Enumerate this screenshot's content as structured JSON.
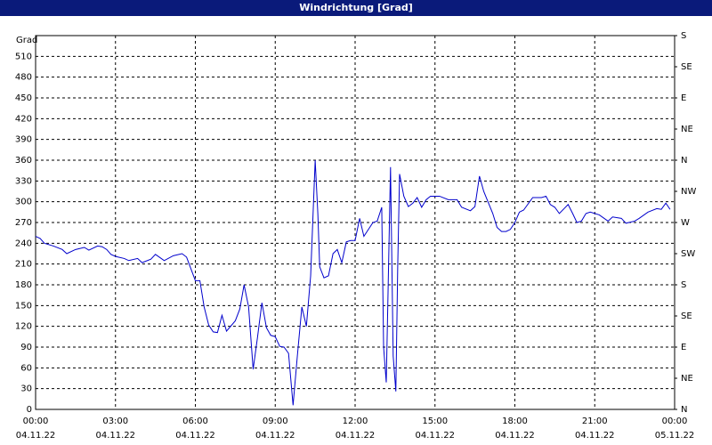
{
  "chart_data": {
    "type": "line",
    "title": "Windrichtung [Grad]",
    "y_label": "Grad",
    "xlim": [
      0,
      24
    ],
    "xticks": [
      {
        "value": 0,
        "label": "00:00"
      },
      {
        "value": 3,
        "label": "03:00"
      },
      {
        "value": 6,
        "label": "06:00"
      },
      {
        "value": 9,
        "label": "09:00"
      },
      {
        "value": 12,
        "label": "12:00"
      },
      {
        "value": 15,
        "label": "15:00"
      },
      {
        "value": 18,
        "label": "18:00"
      },
      {
        "value": 21,
        "label": "21:00"
      },
      {
        "value": 24,
        "label": "00:00"
      }
    ],
    "xtick_dates": [
      "04.11.22",
      "04.11.22",
      "04.11.22",
      "04.11.22",
      "04.11.22",
      "04.11.22",
      "04.11.22",
      "04.11.22",
      "05.11.22"
    ],
    "ylim": [
      0,
      540
    ],
    "yticks": [
      0,
      30,
      60,
      90,
      120,
      150,
      180,
      210,
      240,
      270,
      300,
      330,
      360,
      390,
      420,
      450,
      480,
      510
    ],
    "y2lim": [
      0,
      540
    ],
    "y2ticks": [
      {
        "value": 0,
        "label": "N"
      },
      {
        "value": 45,
        "label": "NE"
      },
      {
        "value": 90,
        "label": "E"
      },
      {
        "value": 135,
        "label": "SE"
      },
      {
        "value": 180,
        "label": "S"
      },
      {
        "value": 225,
        "label": "SW"
      },
      {
        "value": 270,
        "label": "W"
      },
      {
        "value": 315,
        "label": "NW"
      },
      {
        "value": 360,
        "label": "N"
      },
      {
        "value": 405,
        "label": "NE"
      },
      {
        "value": 450,
        "label": "E"
      },
      {
        "value": 495,
        "label": "SE"
      },
      {
        "value": 540,
        "label": "S"
      }
    ],
    "grid": true,
    "x": [
      0,
      0.17,
      0.33,
      0.67,
      1,
      1.17,
      1.5,
      1.83,
      2,
      2.33,
      2.5,
      2.67,
      2.83,
      3,
      3.33,
      3.5,
      3.83,
      4,
      4.33,
      4.5,
      4.83,
      5.17,
      5.5,
      5.67,
      6,
      6.17,
      6.33,
      6.5,
      6.67,
      6.83,
      7,
      7.17,
      7.5,
      7.67,
      7.83,
      8,
      8.17,
      8.33,
      8.5,
      8.67,
      8.83,
      9,
      9.17,
      9.33,
      9.5,
      9.67,
      9.83,
      10,
      10.17,
      10.33,
      10.5,
      10.6,
      10.67,
      10.83,
      11,
      11.17,
      11.33,
      11.5,
      11.67,
      11.83,
      12,
      12.17,
      12.33,
      12.5,
      12.67,
      12.83,
      13,
      13.07,
      13.17,
      13.33,
      13.43,
      13.53,
      13.6,
      13.67,
      13.83,
      14,
      14.17,
      14.33,
      14.5,
      14.67,
      14.83,
      15.17,
      15.5,
      15.83,
      16,
      16.33,
      16.5,
      16.67,
      16.83,
      17.17,
      17.33,
      17.5,
      17.67,
      17.83,
      18,
      18.17,
      18.33,
      18.67,
      19,
      19.17,
      19.33,
      19.5,
      19.67,
      20,
      20.17,
      20.33,
      20.5,
      20.67,
      20.83,
      21.17,
      21.5,
      21.67,
      22,
      22.17,
      22.5,
      22.67,
      23,
      23.33,
      23.5,
      23.67,
      23.83
    ],
    "series": [
      {
        "color": "#0000cc",
        "values": [
          250,
          247,
          240,
          236,
          231,
          225,
          231,
          234,
          230,
          236,
          235,
          231,
          224,
          221,
          218,
          215,
          218,
          212,
          217,
          224,
          215,
          222,
          225,
          220,
          186,
          186,
          148,
          122,
          112,
          111,
          136,
          113,
          128,
          145,
          180,
          148,
          58,
          103,
          154,
          118,
          107,
          105,
          91,
          90,
          81,
          6,
          77,
          148,
          120,
          193,
          360,
          283,
          206,
          190,
          193,
          225,
          231,
          212,
          242,
          244,
          244,
          276,
          250,
          260,
          270,
          272,
          292,
          90,
          39,
          350,
          77,
          26,
          206,
          340,
          308,
          293,
          298,
          306,
          292,
          303,
          308,
          308,
          303,
          303,
          292,
          287,
          293,
          337,
          315,
          283,
          263,
          257,
          257,
          260,
          270,
          285,
          288,
          306,
          306,
          308,
          296,
          292,
          283,
          296,
          283,
          270,
          272,
          283,
          285,
          281,
          272,
          278,
          276,
          269,
          272,
          276,
          285,
          290,
          289,
          298,
          289
        ]
      }
    ]
  }
}
